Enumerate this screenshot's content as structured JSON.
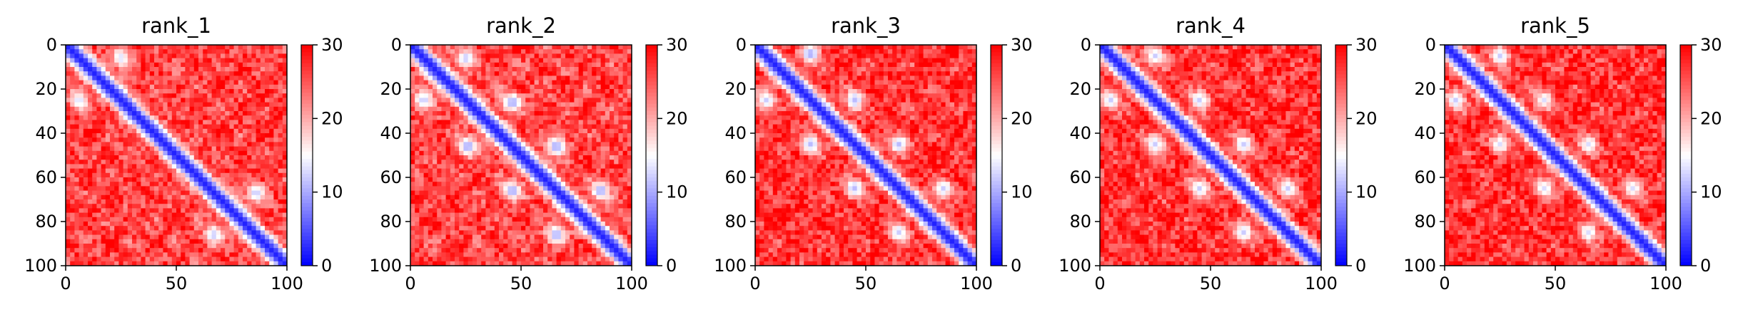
{
  "chart_data": [
    {
      "type": "heatmap",
      "title": "rank_1",
      "x_ticks": [
        "0",
        "50",
        "100"
      ],
      "y_ticks": [
        "0",
        "20",
        "40",
        "60",
        "80",
        "100"
      ],
      "xlim": [
        0,
        100
      ],
      "ylim": [
        100,
        0
      ],
      "colorbar": {
        "ticks": [
          "0",
          "10",
          "20",
          "30"
        ],
        "range": [
          0,
          30
        ],
        "colormap": "bwr"
      },
      "diagonal_band_value": 2,
      "background_value": 26,
      "features": [
        {
          "x": 25,
          "y": 6,
          "value": 13
        },
        {
          "x": 6,
          "y": 25,
          "value": 13
        },
        {
          "x": 67,
          "y": 86,
          "value": 12
        },
        {
          "x": 86,
          "y": 67,
          "value": 12
        }
      ]
    },
    {
      "type": "heatmap",
      "title": "rank_2",
      "x_ticks": [
        "0",
        "50",
        "100"
      ],
      "y_ticks": [
        "0",
        "20",
        "40",
        "60",
        "80",
        "100"
      ],
      "xlim": [
        0,
        100
      ],
      "ylim": [
        100,
        0
      ],
      "colorbar": {
        "ticks": [
          "0",
          "10",
          "20",
          "30"
        ],
        "range": [
          0,
          30
        ],
        "colormap": "bwr"
      },
      "diagonal_band_value": 2,
      "background_value": 26,
      "features": [
        {
          "x": 25,
          "y": 6,
          "value": 12
        },
        {
          "x": 6,
          "y": 25,
          "value": 12
        },
        {
          "x": 46,
          "y": 26,
          "value": 10
        },
        {
          "x": 26,
          "y": 46,
          "value": 10
        },
        {
          "x": 66,
          "y": 46,
          "value": 10
        },
        {
          "x": 46,
          "y": 66,
          "value": 10
        },
        {
          "x": 86,
          "y": 66,
          "value": 10
        },
        {
          "x": 66,
          "y": 86,
          "value": 10
        }
      ]
    },
    {
      "type": "heatmap",
      "title": "rank_3",
      "x_ticks": [
        "0",
        "50",
        "100"
      ],
      "y_ticks": [
        "0",
        "20",
        "40",
        "60",
        "80",
        "100"
      ],
      "xlim": [
        0,
        100
      ],
      "ylim": [
        100,
        0
      ],
      "colorbar": {
        "ticks": [
          "0",
          "10",
          "20",
          "30"
        ],
        "range": [
          0,
          30
        ],
        "colormap": "bwr"
      },
      "diagonal_band_value": 2,
      "background_value": 27,
      "features": [
        {
          "x": 25,
          "y": 4,
          "value": 10
        },
        {
          "x": 5,
          "y": 25,
          "value": 12
        },
        {
          "x": 45,
          "y": 25,
          "value": 11
        },
        {
          "x": 25,
          "y": 45,
          "value": 11
        },
        {
          "x": 65,
          "y": 45,
          "value": 11
        },
        {
          "x": 45,
          "y": 65,
          "value": 11
        },
        {
          "x": 85,
          "y": 65,
          "value": 12
        },
        {
          "x": 65,
          "y": 85,
          "value": 12
        }
      ]
    },
    {
      "type": "heatmap",
      "title": "rank_4",
      "x_ticks": [
        "0",
        "50",
        "100"
      ],
      "y_ticks": [
        "0",
        "20",
        "40",
        "60",
        "80",
        "100"
      ],
      "xlim": [
        0,
        100
      ],
      "ylim": [
        100,
        0
      ],
      "colorbar": {
        "ticks": [
          "0",
          "10",
          "20",
          "30"
        ],
        "range": [
          0,
          30
        ],
        "colormap": "bwr"
      },
      "diagonal_band_value": 2,
      "background_value": 27,
      "features": [
        {
          "x": 25,
          "y": 5,
          "value": 12
        },
        {
          "x": 5,
          "y": 25,
          "value": 12
        },
        {
          "x": 45,
          "y": 25,
          "value": 12
        },
        {
          "x": 25,
          "y": 45,
          "value": 12
        },
        {
          "x": 65,
          "y": 45,
          "value": 12
        },
        {
          "x": 45,
          "y": 65,
          "value": 12
        },
        {
          "x": 85,
          "y": 65,
          "value": 12
        },
        {
          "x": 65,
          "y": 85,
          "value": 12
        }
      ]
    },
    {
      "type": "heatmap",
      "title": "rank_5",
      "x_ticks": [
        "0",
        "50",
        "100"
      ],
      "y_ticks": [
        "0",
        "20",
        "40",
        "60",
        "80",
        "100"
      ],
      "xlim": [
        0,
        100
      ],
      "ylim": [
        100,
        0
      ],
      "colorbar": {
        "ticks": [
          "0",
          "10",
          "20",
          "30"
        ],
        "range": [
          0,
          30
        ],
        "colormap": "bwr"
      },
      "diagonal_band_value": 2,
      "background_value": 27,
      "features": [
        {
          "x": 25,
          "y": 5,
          "value": 12
        },
        {
          "x": 5,
          "y": 25,
          "value": 12
        },
        {
          "x": 45,
          "y": 25,
          "value": 13
        },
        {
          "x": 25,
          "y": 45,
          "value": 13
        },
        {
          "x": 65,
          "y": 45,
          "value": 13
        },
        {
          "x": 45,
          "y": 65,
          "value": 13
        },
        {
          "x": 85,
          "y": 65,
          "value": 13
        },
        {
          "x": 65,
          "y": 85,
          "value": 13
        }
      ]
    }
  ]
}
